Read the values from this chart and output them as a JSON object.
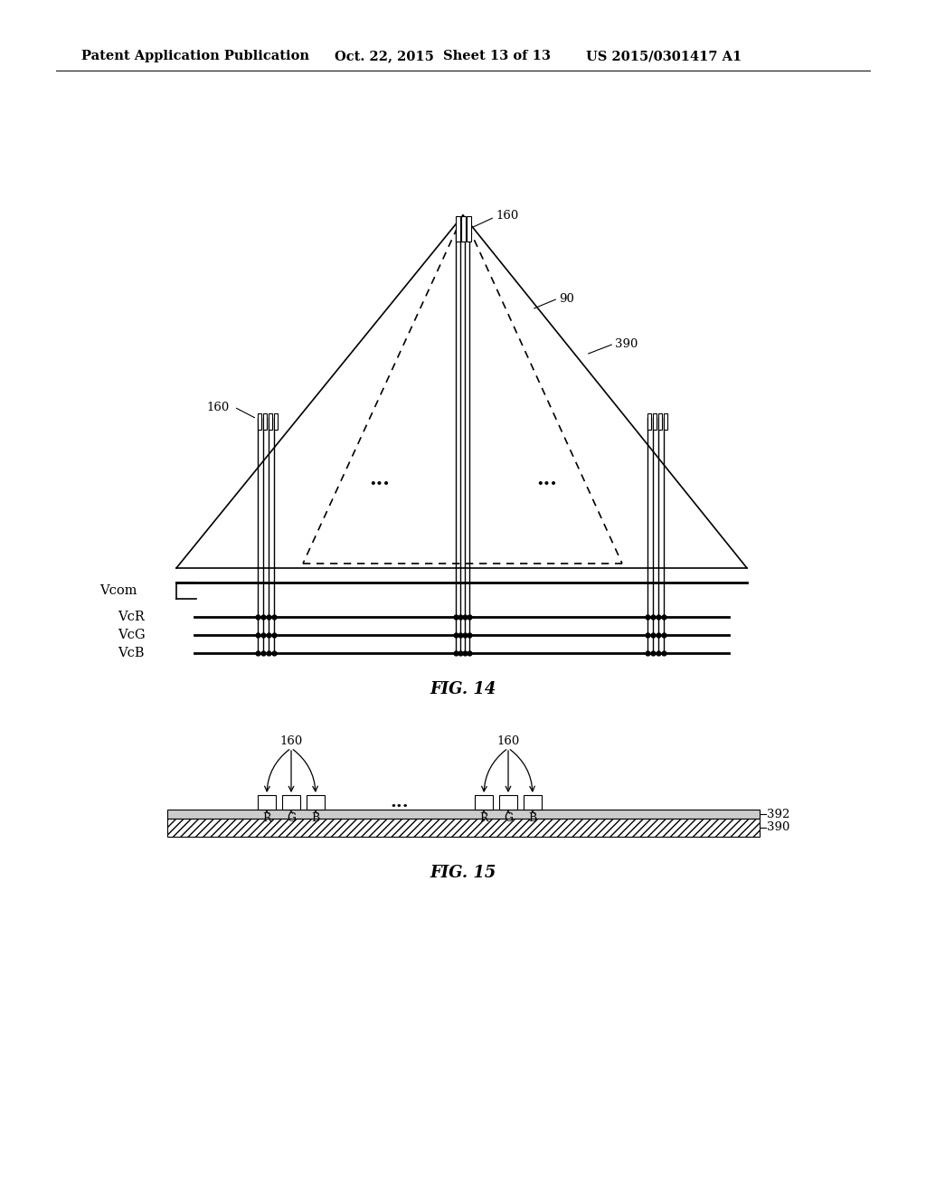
{
  "bg_color": "#ffffff",
  "header_text": "Patent Application Publication",
  "header_date": "Oct. 22, 2015",
  "header_sheet": "Sheet 13 of 13",
  "header_patent": "US 2015/0301417 A1",
  "fig14_label": "FIG. 14",
  "fig15_label": "FIG. 15",
  "line_color": "#000000",
  "lw": 1.2,
  "tlw": 2.0
}
